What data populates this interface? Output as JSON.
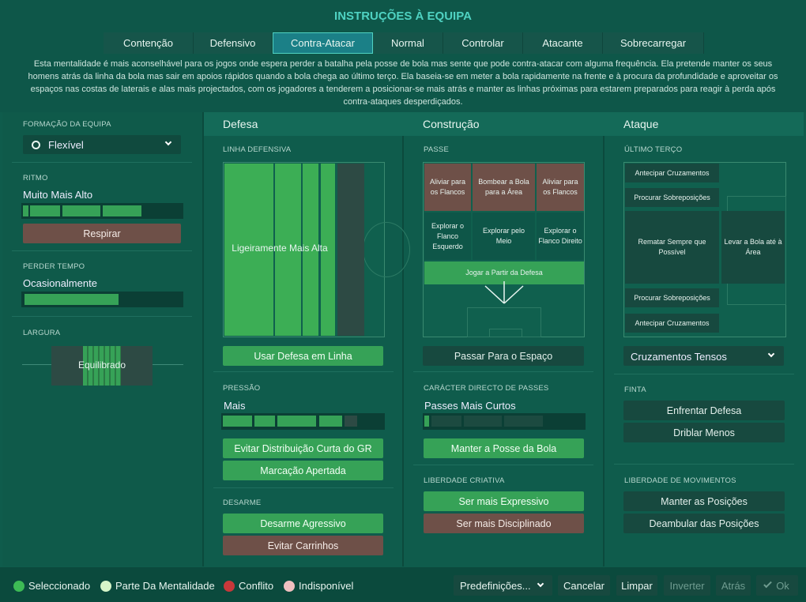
{
  "header": {
    "title": "INSTRUÇÕES À EQUIPA"
  },
  "tabs": [
    "Contenção",
    "Defensivo",
    "Contra-Atacar",
    "Normal",
    "Controlar",
    "Atacante",
    "Sobrecarregar"
  ],
  "description": "Esta mentalidade é mais aconselhável para os jogos onde espera perder a batalha pela posse de bola mas sente que pode contra-atacar com alguma frequência. Ela pretende manter os seus homens atrás da linha da bola mas sair em apoios rápidos quando a bola chega ao último terço. Ela baseia-se em meter a bola rapidamente na frente e à procura da profundidade e aproveitar os espaços nas costas de laterais e alas mais projectados, com os jogadores a tenderem a posicionar-se mais atrás e manter as linhas próximas para estarem preparados para reagir à perda após contra-ataques desperdiçados.",
  "left": {
    "formation_label": "FORMAÇÃO DA EQUIPA",
    "formation_value": "Flexível",
    "tempo_label": "RITMO",
    "tempo_value": "Muito Mais Alto",
    "tempo_button": "Respirar",
    "time_label": "PERDER TEMPO",
    "time_value": "Ocasionalmente",
    "width_label": "LARGURA",
    "width_value": "Equilibrado"
  },
  "defence": {
    "title": "Defesa",
    "line_label": "LINHA DEFENSIVA",
    "line_value": "Ligeiramente Mais Alta",
    "line_button": "Usar Defesa em Linha",
    "press_label": "PRESSÃO",
    "press_value": "Mais",
    "press_buttons": [
      "Evitar Distribuição Curta do GR",
      "Marcação Apertada"
    ],
    "tackle_label": "DESARME",
    "tackle_buttons": [
      "Desarme Agressivo",
      "Evitar Carrinhos"
    ]
  },
  "build": {
    "title": "Construção",
    "pass_label": "PASSE",
    "cells": [
      "Aliviar para os Flancos",
      "Bombear a Bola para a Área",
      "Aliviar para os Flancos",
      "Explorar o Flanco Esquerdo",
      "Explorar pelo Meio",
      "Explorar o Flanco Direito",
      "Jogar a Partir da Defesa"
    ],
    "pass_button": "Passar Para o Espaço",
    "direct_label": "CARÁCTER DIRECTO DE PASSES",
    "direct_value": "Passes Mais Curtos",
    "direct_button": "Manter a Posse da Bola",
    "creative_label": "LIBERDADE CRIATIVA",
    "creative_buttons": [
      "Ser mais Expressivo",
      "Ser mais Disciplinado"
    ]
  },
  "attack": {
    "title": "Ataque",
    "third_label": "ÚLTIMO TERÇO",
    "cells": [
      "Antecipar Cruzamentos",
      "Procurar Sobreposições",
      "Rematar Sempre que Possível",
      "Levar a Bola até à Área",
      "Procurar Sobreposições",
      "Antecipar Cruzamentos"
    ],
    "cross_value": "Cruzamentos Tensos",
    "dribble_label": "FINTA",
    "dribble_buttons": [
      "Enfrentar Defesa",
      "Driblar Menos"
    ],
    "move_label": "LIBERDADE DE MOVIMENTOS",
    "move_buttons": [
      "Manter as Posições",
      "Deambular das Posições"
    ]
  },
  "legend": [
    "Seleccionado",
    "Parte Da Mentalidade",
    "Conflito",
    "Indisponível"
  ],
  "footer_buttons": [
    "Predefinições...",
    "Cancelar",
    "Limpar",
    "Inverter",
    "Atrás",
    "Ok"
  ]
}
